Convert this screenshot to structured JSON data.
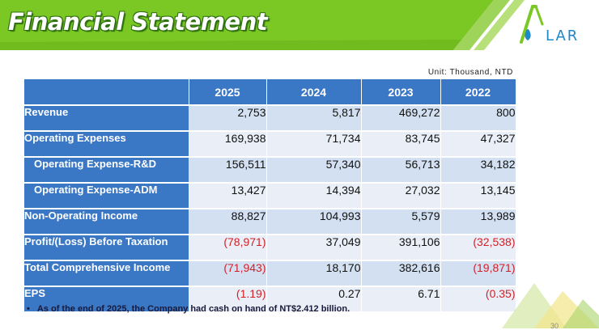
{
  "slide": {
    "title": "Financial Statement",
    "logo_text": "LAR",
    "unit": "Unit: Thousand, NTD",
    "page_number": "30"
  },
  "colors": {
    "header_green": "#7bc824",
    "table_blue": "#3a77c5",
    "negative_red": "#d51f26"
  },
  "table": {
    "columns": [
      "2025",
      "2024",
      "2023",
      "2022"
    ],
    "rows": [
      {
        "label": "Revenue",
        "values": [
          "2,753",
          "5,817",
          "469,272",
          "800"
        ]
      },
      {
        "label": "Operating Expenses",
        "values": [
          "169,938",
          "71,734",
          "83,745",
          "47,327"
        ]
      },
      {
        "label": "Operating Expense-R&D",
        "values": [
          "156,511",
          "57,340",
          "56,713",
          "34,182"
        ]
      },
      {
        "label": "Operating Expense-ADM",
        "values": [
          "13,427",
          "14,394",
          "27,032",
          "13,145"
        ]
      },
      {
        "label": "Non-Operating Income",
        "values": [
          "88,827",
          "104,993",
          "5,579",
          "13,989"
        ]
      },
      {
        "label": "Profit/(Loss) Before Taxation",
        "values": [
          "(78,971)",
          "37,049",
          "391,106",
          "(32,538)"
        ]
      },
      {
        "label": "Total Comprehensive Income",
        "values": [
          "(71,943)",
          "18,170",
          "382,616",
          "(19,871)"
        ]
      },
      {
        "label": "EPS",
        "values": [
          "(1.19)",
          "0.27",
          "6.71",
          "(0.35)"
        ]
      }
    ]
  },
  "footnote": {
    "bullet": "•",
    "text": "As of the end of 2025, the Company had cash on hand of NT$2.412 billion."
  }
}
